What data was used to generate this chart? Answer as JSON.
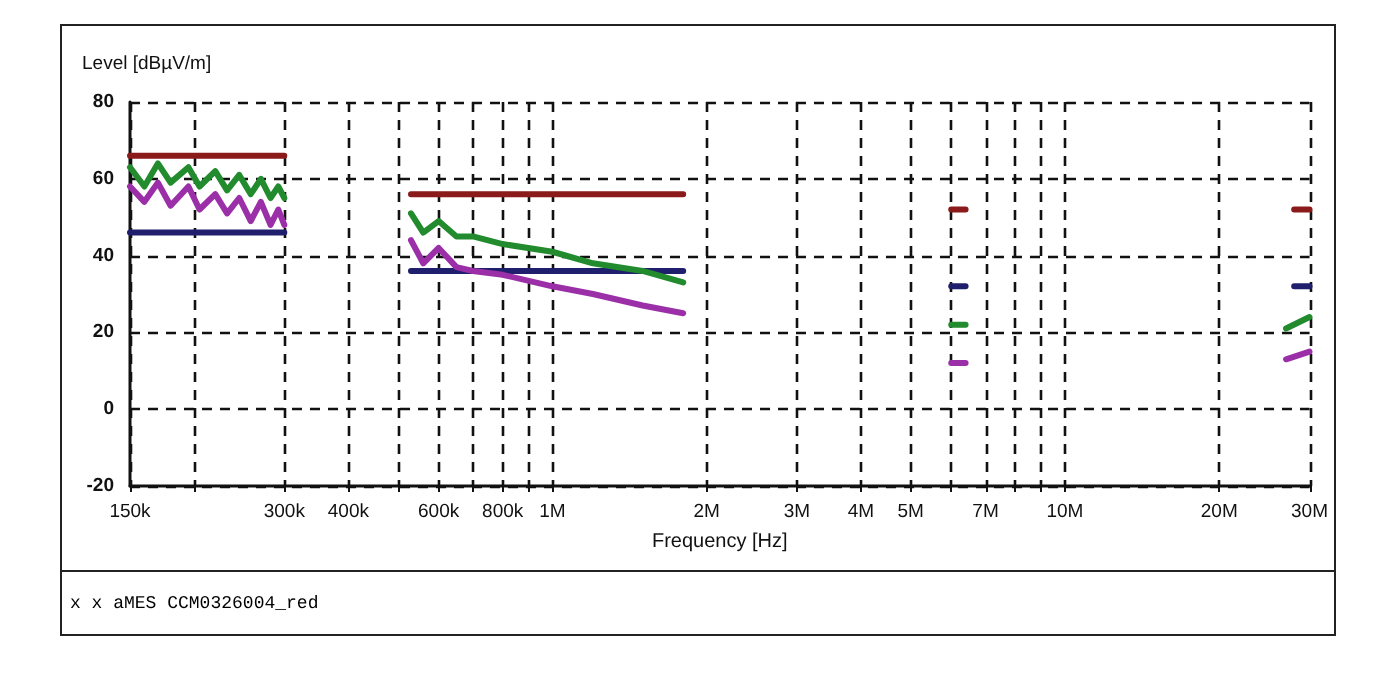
{
  "chart_data": {
    "type": "line",
    "xlabel": "Frequency [Hz]",
    "ylabel": "Level [dBµV/m]",
    "log": "x",
    "grid": true,
    "line_style": "solid",
    "marker": "none",
    "xlim": [
      150000,
      30000000
    ],
    "xticks": [
      {
        "value": 150000,
        "label": "150k"
      },
      {
        "value": 200000,
        "label": null
      },
      {
        "value": 300000,
        "label": "300k"
      },
      {
        "value": 400000,
        "label": "400k"
      },
      {
        "value": 500000,
        "label": null
      },
      {
        "value": 600000,
        "label": "600k"
      },
      {
        "value": 700000,
        "label": null
      },
      {
        "value": 800000,
        "label": "800k"
      },
      {
        "value": 900000,
        "label": null
      },
      {
        "value": 1000000,
        "label": "1M"
      },
      {
        "value": 2000000,
        "label": "2M"
      },
      {
        "value": 3000000,
        "label": "3M"
      },
      {
        "value": 4000000,
        "label": "4M"
      },
      {
        "value": 5000000,
        "label": "5M"
      },
      {
        "value": 6000000,
        "label": null
      },
      {
        "value": 7000000,
        "label": "7M"
      },
      {
        "value": 8000000,
        "label": null
      },
      {
        "value": 9000000,
        "label": null
      },
      {
        "value": 10000000,
        "label": "10M"
      },
      {
        "value": 20000000,
        "label": "20M"
      },
      {
        "value": 30000000,
        "label": "30M"
      }
    ],
    "ylim": [
      -20,
      80
    ],
    "yticks": [
      -20,
      0,
      20,
      40,
      60,
      80
    ],
    "annotations": [
      "x x aMES  CCM0326004_red"
    ],
    "series": [
      {
        "color": "#8b1a1a",
        "x": [
          150000,
          300000,
          400000,
          530000,
          1800000,
          3000000,
          6000000,
          6400000,
          10000000,
          28000000,
          30000000
        ],
        "values": [
          66,
          66,
          null,
          56,
          56,
          null,
          52,
          52,
          null,
          52,
          52
        ]
      },
      {
        "color": "#1f1f6e",
        "x": [
          150000,
          300000,
          400000,
          530000,
          1800000,
          3000000,
          6000000,
          6400000,
          10000000,
          28000000,
          30000000
        ],
        "values": [
          46,
          46,
          null,
          36,
          36,
          null,
          32,
          32,
          null,
          32,
          32
        ]
      },
      {
        "color": "#228b2e",
        "x": [
          150000,
          160000,
          170000,
          180000,
          195000,
          205000,
          220000,
          232000,
          245000,
          258000,
          270000,
          282000,
          292000,
          300000,
          400000,
          530000,
          560000,
          600000,
          650000,
          700000,
          800000,
          1000000,
          1200000,
          1500000,
          1800000,
          3000000,
          6000000,
          6400000,
          10000000,
          27000000,
          30000000
        ],
        "values": [
          63,
          58,
          64,
          59,
          63,
          58,
          62,
          57,
          61,
          56,
          60,
          55,
          58,
          55,
          null,
          51,
          46,
          49,
          45,
          45,
          43,
          41,
          38,
          36,
          33,
          null,
          22,
          22,
          null,
          21,
          24
        ]
      },
      {
        "color": "#9b2fa8",
        "x": [
          150000,
          160000,
          170000,
          180000,
          195000,
          205000,
          220000,
          232000,
          245000,
          258000,
          270000,
          282000,
          292000,
          300000,
          400000,
          530000,
          560000,
          600000,
          650000,
          700000,
          800000,
          1000000,
          1200000,
          1500000,
          1800000,
          3000000,
          6000000,
          6400000,
          10000000,
          27000000,
          30000000
        ],
        "values": [
          58,
          54,
          59,
          53,
          58,
          52,
          56,
          51,
          55,
          49,
          54,
          48,
          52,
          48,
          null,
          44,
          38,
          42,
          37,
          36,
          35,
          32,
          30,
          27,
          25,
          null,
          12,
          12,
          null,
          13,
          15
        ]
      }
    ]
  }
}
